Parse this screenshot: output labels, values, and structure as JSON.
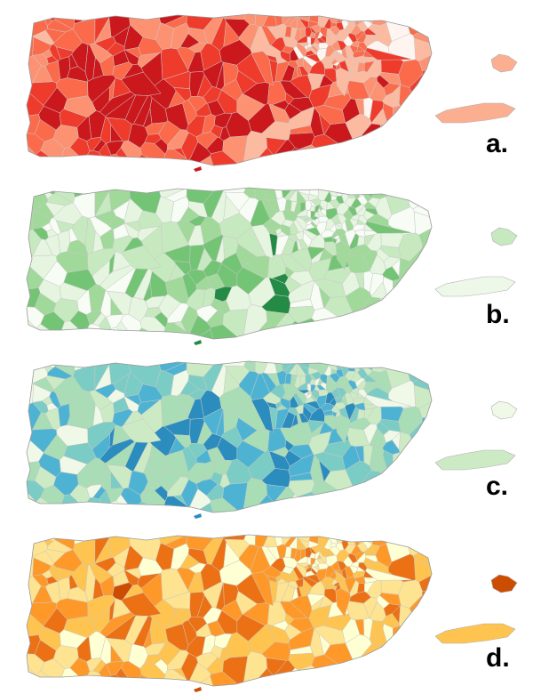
{
  "panels": [
    {
      "label": "a.",
      "palette": [
        "#fff5f0",
        "#fcbba1",
        "#fc9272",
        "#fb6a4a",
        "#ef3b2c",
        "#cb181d"
      ],
      "vieques": "#fcae91",
      "culebra": "#fcae91"
    },
    {
      "label": "b.",
      "palette": [
        "#f7fcf5",
        "#e5f5e0",
        "#c7e9c0",
        "#a1d99b",
        "#74c476",
        "#238b45"
      ],
      "vieques": "#edf8e9",
      "culebra": "#c7e9c0"
    },
    {
      "label": "c.",
      "palette": [
        "#f0f9e8",
        "#ccebc5",
        "#a8ddb5",
        "#7bccc4",
        "#4eb3d3",
        "#2b8cbe"
      ],
      "vieques": "#ccebc5",
      "culebra": "#f0f9e8"
    },
    {
      "label": "d.",
      "palette": [
        "#ffffd4",
        "#fee391",
        "#fec44f",
        "#fe9929",
        "#ec7014",
        "#cc4c02"
      ],
      "vieques": "#fec44f",
      "culebra": "#cc4c02"
    }
  ]
}
